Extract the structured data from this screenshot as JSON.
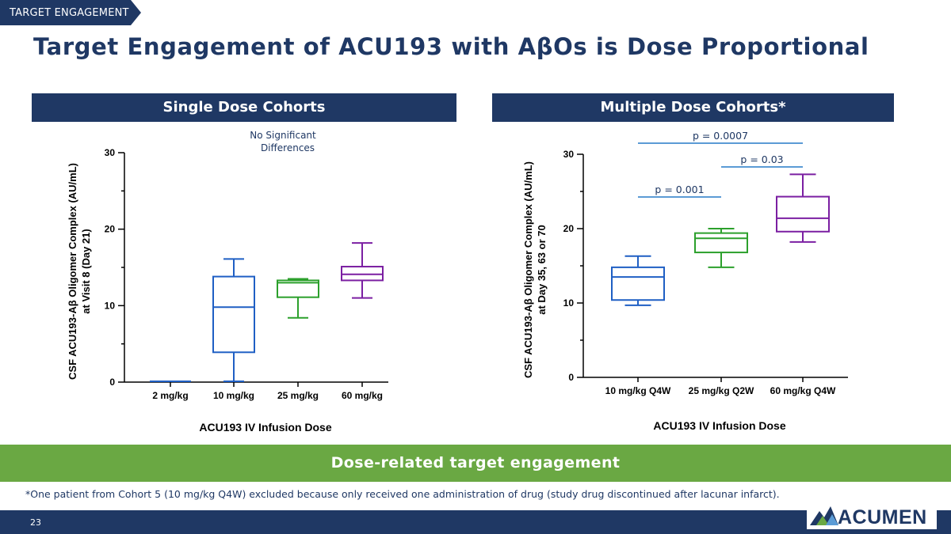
{
  "section_tab": "TARGET ENGAGEMENT",
  "title": "Target Engagement of ACU193 with AβOs is Dose Proportional",
  "panels": {
    "left_header": "Single Dose Cohorts",
    "right_header": "Multiple Dose Cohorts*"
  },
  "banner": "Dose-related target engagement",
  "footnote": "*One patient from Cohort 5 (10 mg/kg Q4W) excluded because only received one administration of drug (study drug discontinued after lacunar infarct).",
  "page_number": "23",
  "logo": {
    "text": "ACUMEN",
    "icon": "mountain-peaks-icon"
  },
  "colors": {
    "navy": "#1f3864",
    "green_banner": "#6aa843",
    "blue": "#1f5fc4",
    "green": "#2ca02c",
    "purple": "#7b1fa2",
    "sig_line": "#5b9bd5"
  },
  "chart_data": [
    {
      "type": "box",
      "ylabel_line1": "CSF ACU193-Aβ Oligomer Complex (AU/mL)",
      "ylabel_line2": "at Visit 8 (Day 21)",
      "xlabel": "ACU193 IV Infusion Dose",
      "ylim": [
        0,
        30
      ],
      "yticks": [
        0,
        10,
        20,
        30
      ],
      "annotation_line1": "No Significant",
      "annotation_line2": "Differences",
      "categories": [
        "2 mg/kg",
        "10 mg/kg",
        "25 mg/kg",
        "60 mg/kg"
      ],
      "boxes": [
        {
          "min": 0.1,
          "q1": 0.1,
          "median": 0.1,
          "q3": 0.1,
          "max": 0.1,
          "color": "#1f5fc4"
        },
        {
          "min": 0.1,
          "q1": 3.9,
          "median": 9.8,
          "q3": 13.8,
          "max": 16.1,
          "color": "#1f5fc4"
        },
        {
          "min": 8.4,
          "q1": 11.1,
          "median": 13.0,
          "q3": 13.3,
          "max": 13.5,
          "color": "#2ca02c"
        },
        {
          "min": 11.0,
          "q1": 13.3,
          "median": 14.1,
          "q3": 15.1,
          "max": 18.2,
          "color": "#7b1fa2"
        }
      ]
    },
    {
      "type": "box",
      "ylabel_line1": "CSF ACU193-Aβ Oligomer Complex (AU/mL)",
      "ylabel_line2": "at Day 35, 63 or 70",
      "xlabel": "ACU193 IV Infusion Dose",
      "ylim": [
        0,
        30
      ],
      "yticks": [
        0,
        10,
        20,
        30
      ],
      "categories": [
        "10 mg/kg Q4W",
        "25 mg/kg Q2W",
        "60 mg/kg Q4W"
      ],
      "boxes": [
        {
          "min": 9.7,
          "q1": 10.4,
          "median": 13.5,
          "q3": 14.8,
          "max": 16.3,
          "color": "#1f5fc4"
        },
        {
          "min": 14.8,
          "q1": 16.8,
          "median": 18.7,
          "q3": 19.4,
          "max": 20.0,
          "color": "#2ca02c"
        },
        {
          "min": 18.2,
          "q1": 19.6,
          "median": 21.4,
          "q3": 24.3,
          "max": 27.3,
          "color": "#7b1fa2"
        }
      ],
      "significance": [
        {
          "label": "p = 0.0007",
          "from": 0,
          "to": 2
        },
        {
          "label": "p = 0.03",
          "from": 1,
          "to": 2
        },
        {
          "label": "p = 0.001",
          "from": 0,
          "to": 1
        }
      ]
    }
  ]
}
